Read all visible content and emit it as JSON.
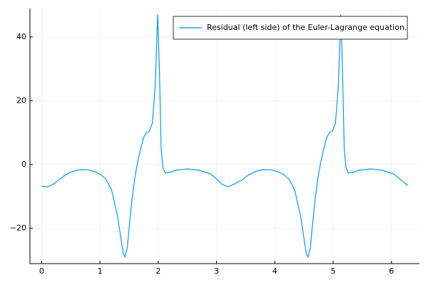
{
  "chart_data": {
    "type": "line",
    "x": [
      0,
      0.1,
      0.2,
      0.3,
      0.4,
      0.5,
      0.6,
      0.7,
      0.8,
      0.9,
      1.0,
      1.1,
      1.2,
      1.3,
      1.35,
      1.4,
      1.43,
      1.47,
      1.5,
      1.55,
      1.6,
      1.65,
      1.7,
      1.75,
      1.8,
      1.85,
      1.9,
      1.95,
      1.99,
      2.02,
      2.05,
      2.08,
      2.12,
      2.2,
      2.3,
      2.5,
      2.7,
      2.9,
      3.0,
      3.1,
      3.2,
      3.3,
      3.44,
      3.54,
      3.64,
      3.74,
      3.84,
      3.94,
      4.04,
      4.14,
      4.24,
      4.34,
      4.44,
      4.49,
      4.54,
      4.57,
      4.61,
      4.64,
      4.69,
      4.74,
      4.79,
      4.84,
      4.89,
      4.94,
      4.99,
      5.04,
      5.09,
      5.13,
      5.16,
      5.19,
      5.22,
      5.26,
      5.34,
      5.44,
      5.64,
      5.84,
      6.04,
      6.14,
      6.28
    ],
    "series": [
      {
        "name": "Residual (left side) of the Euler-Lagrange equation.",
        "color": "#009af9",
        "values": [
          -6.8,
          -7.0,
          -6.2,
          -4.8,
          -3.4,
          -2.4,
          -1.8,
          -1.6,
          -1.7,
          -2.2,
          -3.0,
          -4.5,
          -8,
          -16,
          -22,
          -28,
          -29,
          -26,
          -20,
          -11,
          -4,
          1,
          5,
          8.5,
          10,
          10.5,
          13,
          25,
          47,
          30,
          5,
          -1,
          -2.7,
          -2.5,
          -1.8,
          -1.4,
          -1.8,
          -3,
          -4.5,
          -6.3,
          -7,
          -6.2,
          -4.8,
          -3.4,
          -2.4,
          -1.8,
          -1.6,
          -1.7,
          -2.2,
          -3.0,
          -4.5,
          -8,
          -16,
          -22,
          -28,
          -29,
          -26,
          -20,
          -11,
          -4,
          1,
          5,
          8.5,
          10,
          10.5,
          13,
          25,
          47,
          30,
          5,
          -1,
          -2.7,
          -2.5,
          -1.8,
          -1.4,
          -1.8,
          -3,
          -4.5,
          -6.6
        ]
      }
    ],
    "xlim": [
      -0.2,
      6.48
    ],
    "ylim": [
      -31.1,
      48.9
    ],
    "xticks": [
      0,
      1,
      2,
      3,
      4,
      5,
      6
    ],
    "yticks": [
      {
        "value": -20,
        "label": "−20"
      },
      0,
      20,
      40
    ],
    "grid": true,
    "legend": "top-right"
  }
}
